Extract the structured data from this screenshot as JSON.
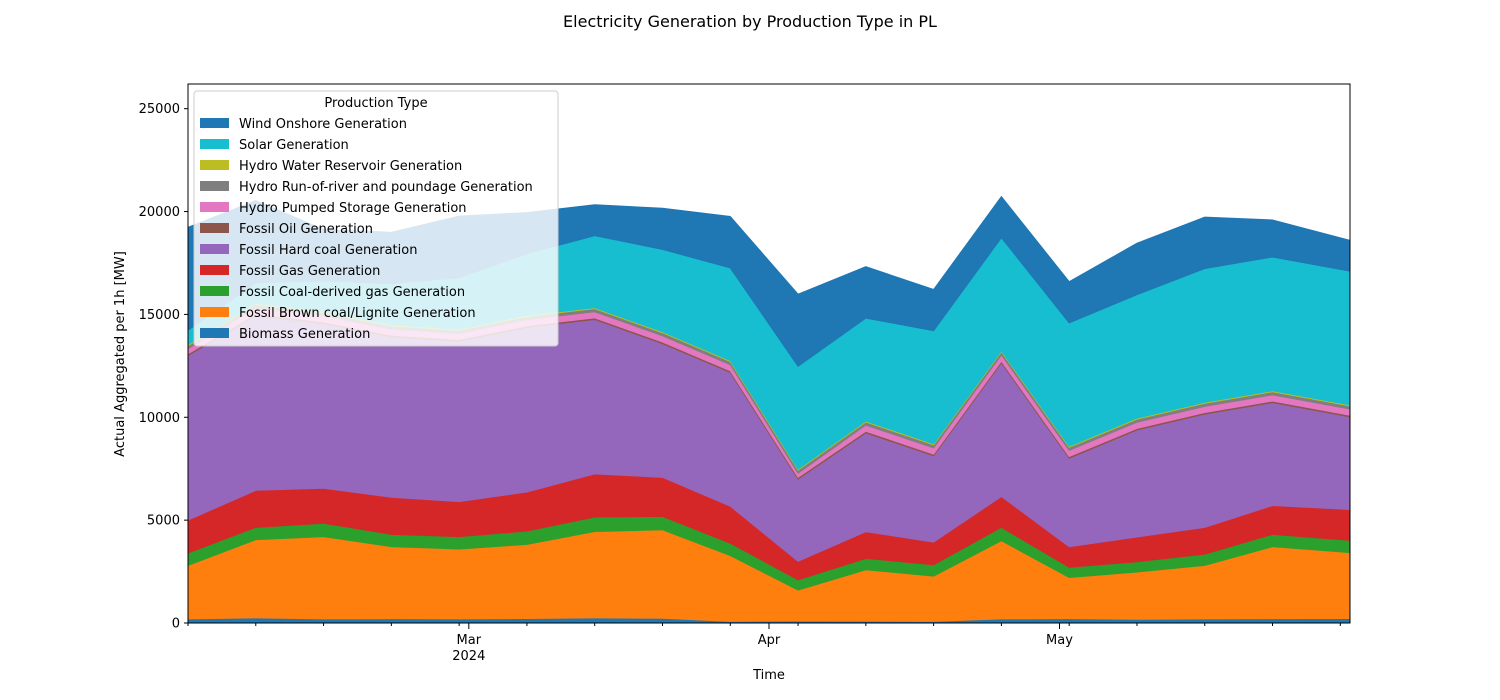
{
  "figure": {
    "title": "Electricity Generation by Production Type in PL"
  },
  "chart_data": {
    "type": "area",
    "stacked": true,
    "title": "Electricity Generation by Production Type in PL",
    "xlabel": "Time",
    "ylabel": "Actual Aggregated per 1h [MW]",
    "xlim": [
      "2024-02-01",
      "2024-05-31"
    ],
    "ylim": [
      0,
      26200
    ],
    "y_ticks": [
      0,
      5000,
      10000,
      15000,
      20000,
      25000
    ],
    "x_ticks": [
      {
        "date": "2024-03-01",
        "label": "Mar",
        "sublabel": "2024"
      },
      {
        "date": "2024-04-01",
        "label": "Apr",
        "sublabel": ""
      },
      {
        "date": "2024-05-01",
        "label": "May",
        "sublabel": ""
      }
    ],
    "grid": false,
    "legend": {
      "title": "Production Type",
      "placement": "upper-left"
    },
    "x": [
      "2024-02-01",
      "2024-02-08",
      "2024-02-15",
      "2024-02-22",
      "2024-02-29",
      "2024-03-07",
      "2024-03-14",
      "2024-03-21",
      "2024-03-28",
      "2024-04-04",
      "2024-04-11",
      "2024-04-18",
      "2024-04-25",
      "2024-05-02",
      "2024-05-09",
      "2024-05-16",
      "2024-05-23",
      "2024-05-31"
    ],
    "series": [
      {
        "name": "Biomass Generation",
        "color": "#1f77b4",
        "values": [
          200,
          250,
          200,
          210,
          200,
          220,
          250,
          230,
          80,
          100,
          90,
          80,
          200,
          210,
          180,
          200,
          210,
          220
        ]
      },
      {
        "name": "Fossil Brown coal/Lignite Generation",
        "color": "#ff7f0e",
        "values": [
          2600,
          3800,
          4000,
          3500,
          3400,
          3600,
          4200,
          4300,
          3200,
          1500,
          2500,
          2200,
          3800,
          2000,
          2300,
          2600,
          3500,
          3200
        ]
      },
      {
        "name": "Fossil Coal-derived gas Generation",
        "color": "#2ca02c",
        "values": [
          600,
          600,
          650,
          600,
          600,
          650,
          700,
          650,
          600,
          500,
          550,
          550,
          650,
          500,
          500,
          550,
          600,
          600
        ]
      },
      {
        "name": "Fossil Gas Generation",
        "color": "#d62728",
        "values": [
          1600,
          1800,
          1700,
          1800,
          1700,
          1900,
          2100,
          1900,
          1800,
          900,
          1300,
          1100,
          1500,
          1000,
          1200,
          1300,
          1400,
          1500
        ]
      },
      {
        "name": "Fossil Hard coal Generation",
        "color": "#9467bd",
        "values": [
          8000,
          8500,
          8000,
          7800,
          7800,
          8000,
          7500,
          6500,
          6500,
          4000,
          4800,
          4200,
          6500,
          4300,
          5200,
          5500,
          5000,
          4500
        ]
      },
      {
        "name": "Fossil Oil Generation",
        "color": "#8c564b",
        "values": [
          80,
          80,
          80,
          80,
          80,
          80,
          80,
          80,
          80,
          80,
          80,
          80,
          80,
          80,
          80,
          80,
          80,
          80
        ]
      },
      {
        "name": "Hydro Pumped Storage Generation",
        "color": "#e377c2",
        "values": [
          250,
          300,
          300,
          300,
          300,
          300,
          300,
          300,
          300,
          200,
          300,
          300,
          300,
          300,
          300,
          300,
          300,
          300
        ]
      },
      {
        "name": "Hydro Run-of-river and poundage Generation",
        "color": "#7f7f7f",
        "values": [
          150,
          150,
          150,
          150,
          150,
          150,
          150,
          150,
          150,
          150,
          150,
          150,
          150,
          150,
          150,
          150,
          150,
          150
        ]
      },
      {
        "name": "Hydro Water Reservoir Generation",
        "color": "#bcbd22",
        "values": [
          50,
          50,
          50,
          50,
          50,
          50,
          50,
          50,
          50,
          50,
          50,
          50,
          50,
          50,
          50,
          50,
          50,
          50
        ]
      },
      {
        "name": "Solar Generation",
        "color": "#17becf",
        "values": [
          700,
          1000,
          1500,
          2000,
          2500,
          3000,
          3500,
          4000,
          4500,
          5000,
          5000,
          5500,
          5500,
          6000,
          6000,
          6500,
          6500,
          6500
        ]
      },
      {
        "name": "Wind Onshore Generation",
        "color": "#1f77b4",
        "values": [
          5000,
          4000,
          2500,
          2500,
          3000,
          2000,
          1500,
          2000,
          2500,
          3500,
          2500,
          2000,
          2000,
          2000,
          2500,
          2500,
          1800,
          1500
        ]
      }
    ]
  }
}
